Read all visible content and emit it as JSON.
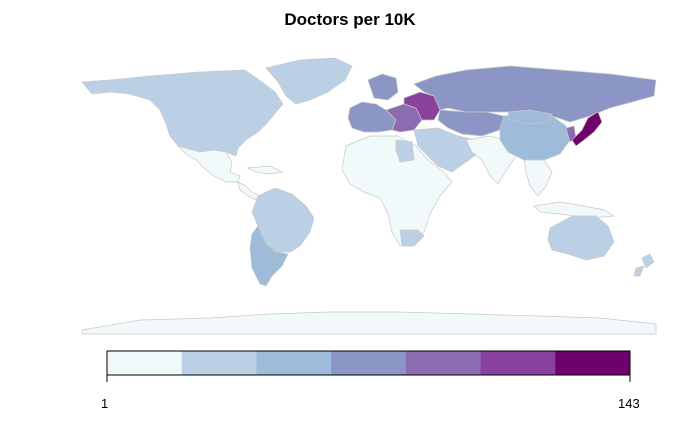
{
  "title": "Doctors per 10K",
  "legend": {
    "min_label": "1",
    "max_label": "143",
    "bins": [
      "#f1f9fb",
      "#bcd0e5",
      "#9ebbd9",
      "#8c96c6",
      "#8c6bb1",
      "#88419d",
      "#6e016b"
    ]
  },
  "colors": {
    "border": "#c8c8c8",
    "ocean": "#ffffff"
  },
  "regions": [
    {
      "name": "north-america",
      "bin": 1
    },
    {
      "name": "greenland",
      "bin": 1
    },
    {
      "name": "mexico",
      "bin": 0
    },
    {
      "name": "central-america",
      "bin": 0
    },
    {
      "name": "south-america",
      "bin": 1
    },
    {
      "name": "argentina",
      "bin": 2
    },
    {
      "name": "europe-west",
      "bin": 3
    },
    {
      "name": "europe-east",
      "bin": 4
    },
    {
      "name": "belarus-ukraine",
      "bin": 5
    },
    {
      "name": "russia",
      "bin": 3
    },
    {
      "name": "kazakhstan",
      "bin": 3
    },
    {
      "name": "middle-east",
      "bin": 1
    },
    {
      "name": "africa",
      "bin": 0
    },
    {
      "name": "libya",
      "bin": 1
    },
    {
      "name": "south-africa",
      "bin": 1
    },
    {
      "name": "south-asia",
      "bin": 0
    },
    {
      "name": "china",
      "bin": 2
    },
    {
      "name": "mongolia",
      "bin": 2
    },
    {
      "name": "japan",
      "bin": 6
    },
    {
      "name": "korea",
      "bin": 4
    },
    {
      "name": "southeast-asia",
      "bin": 0
    },
    {
      "name": "australia",
      "bin": 1
    },
    {
      "name": "new-zealand",
      "bin": 1
    },
    {
      "name": "antarctica",
      "bin": 0
    }
  ]
}
